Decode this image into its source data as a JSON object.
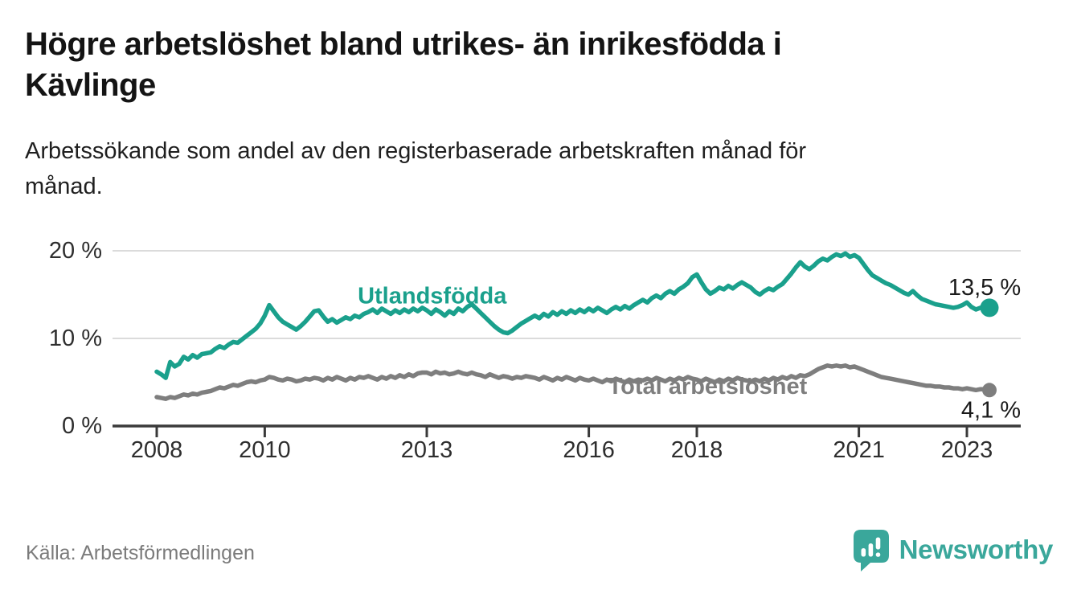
{
  "header": {
    "title": "Högre arbetslöshet bland utrikes- än inrikesfödda i Kävlinge",
    "title_lines": [
      "Högre arbetslöshet bland utrikes- än inrikesfödda i",
      "Kävlinge"
    ],
    "subtitle": "Arbetssökande som andel av den registerbaserade arbetskraften månad för månad.",
    "subtitle_lines": [
      "Arbetssökande som andel av den registerbaserade arbetskraften månad för",
      "månad."
    ]
  },
  "footer": {
    "source": "Källa: Arbetsförmedlingen",
    "logo_text": "Newsworthy"
  },
  "colors": {
    "series_utlandsfodda": "#1AA08C",
    "series_total": "#7E7E7E",
    "grid": "#DBDBDB",
    "axis": "#3A3A3A",
    "tick_label": "#2E2E2E",
    "value_label": "#1A1A1A",
    "logo_teal": "#3AA79B"
  },
  "chart_data": {
    "type": "line",
    "x_unit": "month",
    "x_range": [
      "2008-01",
      "2023-06"
    ],
    "x_ticks": [
      2008,
      2010,
      2013,
      2016,
      2018,
      2021,
      2023
    ],
    "y_ticks": [
      {
        "value": 0,
        "label": "0 %"
      },
      {
        "value": 10,
        "label": "10 %"
      },
      {
        "value": 20,
        "label": "20 %"
      }
    ],
    "ylim": [
      0,
      20
    ],
    "grid": true,
    "series": [
      {
        "name": "Utlandsfödda",
        "color_key": "series_utlandsfodda",
        "end_value": 13.5,
        "end_label": "13,5 %",
        "label_pos": {
          "x_year": 2013.1,
          "y_pct": 14.8
        },
        "values": [
          6.2,
          5.9,
          5.5,
          7.3,
          6.8,
          7.1,
          7.9,
          7.6,
          8.1,
          7.8,
          8.2,
          8.3,
          8.4,
          8.8,
          9.1,
          8.9,
          9.3,
          9.6,
          9.5,
          9.9,
          10.3,
          10.7,
          11.1,
          11.7,
          12.6,
          13.8,
          13.1,
          12.4,
          11.9,
          11.6,
          11.3,
          11.0,
          11.4,
          11.9,
          12.5,
          13.1,
          13.2,
          12.5,
          11.9,
          12.2,
          11.8,
          12.1,
          12.4,
          12.2,
          12.6,
          12.4,
          12.8,
          13.0,
          13.3,
          12.9,
          13.4,
          13.1,
          12.8,
          13.2,
          12.9,
          13.3,
          13.0,
          13.4,
          13.1,
          13.5,
          13.2,
          12.8,
          13.3,
          13.0,
          12.6,
          13.1,
          12.8,
          13.4,
          13.1,
          13.6,
          13.9,
          13.4,
          12.9,
          12.4,
          11.9,
          11.4,
          11.0,
          10.7,
          10.6,
          10.9,
          11.3,
          11.7,
          12.0,
          12.3,
          12.6,
          12.3,
          12.8,
          12.5,
          13.0,
          12.7,
          13.1,
          12.8,
          13.2,
          12.9,
          13.3,
          13.0,
          13.4,
          13.1,
          13.5,
          13.2,
          12.9,
          13.3,
          13.6,
          13.3,
          13.7,
          13.4,
          13.8,
          14.1,
          14.4,
          14.1,
          14.6,
          14.9,
          14.6,
          15.1,
          15.4,
          15.1,
          15.6,
          15.9,
          16.3,
          17.0,
          17.3,
          16.4,
          15.6,
          15.1,
          15.4,
          15.8,
          15.6,
          16.0,
          15.7,
          16.1,
          16.4,
          16.1,
          15.8,
          15.3,
          15.0,
          15.4,
          15.7,
          15.5,
          15.9,
          16.2,
          16.8,
          17.4,
          18.1,
          18.7,
          18.2,
          17.9,
          18.3,
          18.8,
          19.1,
          18.9,
          19.3,
          19.6,
          19.4,
          19.7,
          19.3,
          19.5,
          19.2,
          18.5,
          17.8,
          17.2,
          16.9,
          16.6,
          16.3,
          16.1,
          15.8,
          15.5,
          15.2,
          15.0,
          15.4,
          14.9,
          14.5,
          14.3,
          14.1,
          13.9,
          13.8,
          13.7,
          13.6,
          13.5,
          13.6,
          13.8,
          14.1,
          13.6,
          13.3,
          13.5,
          13.7,
          13.5
        ]
      },
      {
        "name": "Total arbetslöshet",
        "color_key": "series_total",
        "end_value": 4.1,
        "end_label": "4,1 %",
        "label_pos": {
          "x_year": 2018.2,
          "y_pct": 4.5
        },
        "values": [
          3.3,
          3.2,
          3.1,
          3.3,
          3.2,
          3.4,
          3.6,
          3.5,
          3.7,
          3.6,
          3.8,
          3.9,
          4.0,
          4.2,
          4.4,
          4.3,
          4.5,
          4.7,
          4.6,
          4.8,
          5.0,
          5.1,
          5.0,
          5.2,
          5.3,
          5.6,
          5.5,
          5.3,
          5.2,
          5.4,
          5.3,
          5.1,
          5.2,
          5.4,
          5.3,
          5.5,
          5.4,
          5.2,
          5.5,
          5.3,
          5.6,
          5.4,
          5.2,
          5.5,
          5.3,
          5.6,
          5.5,
          5.7,
          5.5,
          5.3,
          5.6,
          5.4,
          5.7,
          5.5,
          5.8,
          5.6,
          5.9,
          5.7,
          6.0,
          6.1,
          6.1,
          5.9,
          6.2,
          6.0,
          6.1,
          5.9,
          6.0,
          6.2,
          6.0,
          5.9,
          6.1,
          5.9,
          5.8,
          5.6,
          5.9,
          5.7,
          5.5,
          5.7,
          5.6,
          5.4,
          5.6,
          5.5,
          5.7,
          5.6,
          5.5,
          5.3,
          5.6,
          5.4,
          5.2,
          5.5,
          5.3,
          5.6,
          5.4,
          5.2,
          5.5,
          5.3,
          5.2,
          5.4,
          5.2,
          5.0,
          5.3,
          5.1,
          5.4,
          5.2,
          5.0,
          5.3,
          5.1,
          5.3,
          5.2,
          5.4,
          5.2,
          5.5,
          5.3,
          5.1,
          5.4,
          5.2,
          5.5,
          5.3,
          5.6,
          5.4,
          5.3,
          5.1,
          5.4,
          5.2,
          5.0,
          5.3,
          5.1,
          5.4,
          5.2,
          5.5,
          5.3,
          5.2,
          5.1,
          5.3,
          5.1,
          5.4,
          5.2,
          5.5,
          5.3,
          5.6,
          5.4,
          5.7,
          5.5,
          5.8,
          5.7,
          5.9,
          6.2,
          6.5,
          6.7,
          6.9,
          6.8,
          6.9,
          6.8,
          6.9,
          6.7,
          6.8,
          6.6,
          6.4,
          6.2,
          6.0,
          5.8,
          5.6,
          5.5,
          5.4,
          5.3,
          5.2,
          5.1,
          5.0,
          4.9,
          4.8,
          4.7,
          4.6,
          4.6,
          4.5,
          4.5,
          4.4,
          4.4,
          4.3,
          4.3,
          4.2,
          4.3,
          4.2,
          4.1,
          4.2,
          4.2,
          4.1
        ]
      }
    ]
  }
}
